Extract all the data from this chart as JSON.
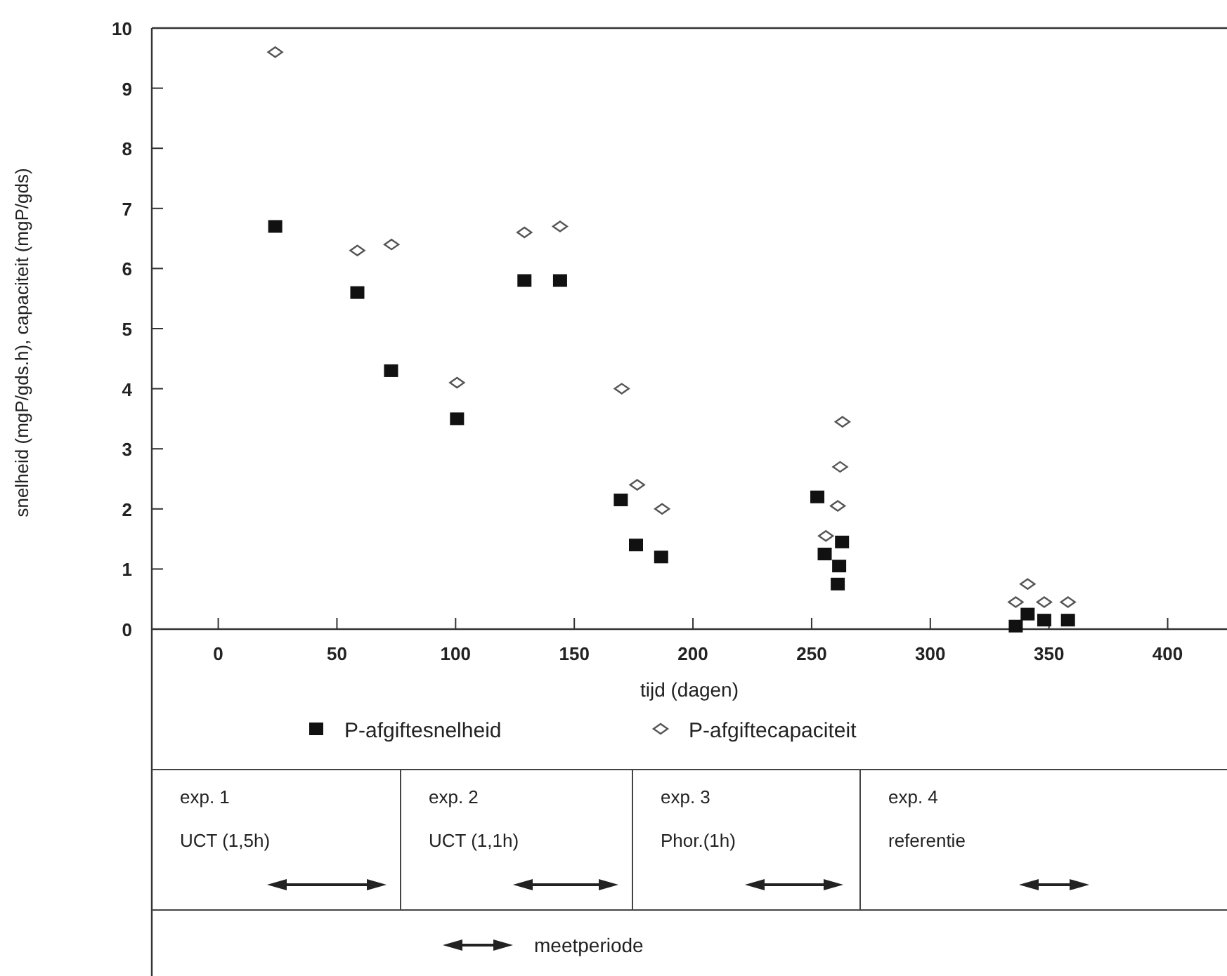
{
  "chart_data": {
    "type": "scatter",
    "xlabel": "tijd (dagen)",
    "ylabel": "snelheid (mgP/gds.h),  capaciteit (mgP/gds)",
    "xlim": [
      -28,
      425
    ],
    "ylim": [
      0,
      10
    ],
    "xticks": [
      0,
      50,
      100,
      150,
      200,
      250,
      300,
      350,
      400
    ],
    "yticks": [
      0,
      1,
      2,
      3,
      4,
      5,
      6,
      7,
      8,
      9,
      10
    ],
    "grid": false,
    "legend": "bottom",
    "series": [
      {
        "name": "P-afgiftesnelheid",
        "color": "#111111",
        "marker": "square",
        "x": [
          24,
          58.6,
          72.8,
          100.6,
          129,
          144,
          169.6,
          176,
          186.6,
          252.4,
          255.5,
          262.8,
          261.6,
          261,
          336,
          341,
          348,
          358
        ],
        "values": [
          6.7,
          5.6,
          4.3,
          3.5,
          5.8,
          5.8,
          2.15,
          1.4,
          1.2,
          2.2,
          1.25,
          1.45,
          1.05,
          0.75,
          0.05,
          0.25,
          0.15,
          0.15
        ]
      },
      {
        "name": "P-afgiftecapaciteit",
        "color": "#555555",
        "marker": "diamond",
        "x": [
          24,
          58.6,
          73,
          100.6,
          129,
          144,
          170,
          176.5,
          187,
          263,
          262,
          261,
          256,
          336,
          341,
          348,
          358
        ],
        "values": [
          9.6,
          6.3,
          6.4,
          4.1,
          6.6,
          6.7,
          4.0,
          2.4,
          2.0,
          3.45,
          2.7,
          2.05,
          1.55,
          0.45,
          0.75,
          0.45,
          0.45
        ]
      }
    ],
    "annotations": [
      "exp. 1",
      "UCT (1,5h)",
      "exp. 2",
      "UCT (1,1h)",
      "exp. 3",
      "Phor.(1h)",
      "exp. 4",
      "referentie",
      "meetperiode"
    ]
  }
}
